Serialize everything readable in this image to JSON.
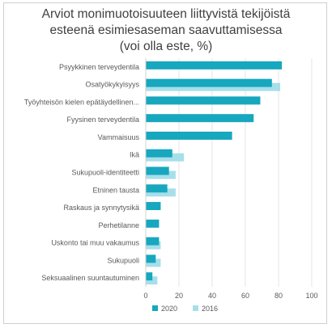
{
  "chart_data": {
    "type": "bar",
    "orientation": "horizontal",
    "title": "Arviot monimuotoisuuteen liittyvistä tekijöistä\nesteenä esimiesaseman saavuttamisessa\n(voi olla este, %)",
    "categories": [
      "Psyykkinen terveydentila",
      "Osatyökykyisyys",
      "Työyhteisön kielen epätäydellinen...",
      "Fyysinen terveydentila",
      "Vammaisuus",
      "Ikä",
      "Sukupuoli-identiteetti",
      "Etninen tausta",
      "Raskaus ja synnytysikä",
      "Perhetilanne",
      "Uskonto tai muu vakaumus",
      "Sukupuoli",
      "Seksuaalinen suuntautuminen"
    ],
    "series": [
      {
        "name": "2020",
        "color": "#17A7BE",
        "values": [
          82,
          76,
          69,
          65,
          52,
          16,
          14,
          13,
          9,
          8,
          8,
          6,
          4
        ]
      },
      {
        "name": "2016",
        "color": "#A6DFEA",
        "values": [
          null,
          81,
          null,
          null,
          null,
          23,
          18,
          18,
          null,
          null,
          9,
          9,
          7
        ]
      }
    ],
    "xlim": [
      0,
      100
    ],
    "xticks": [
      0,
      20,
      40,
      60,
      80,
      100
    ],
    "legend_position": "bottom",
    "grid": true
  }
}
